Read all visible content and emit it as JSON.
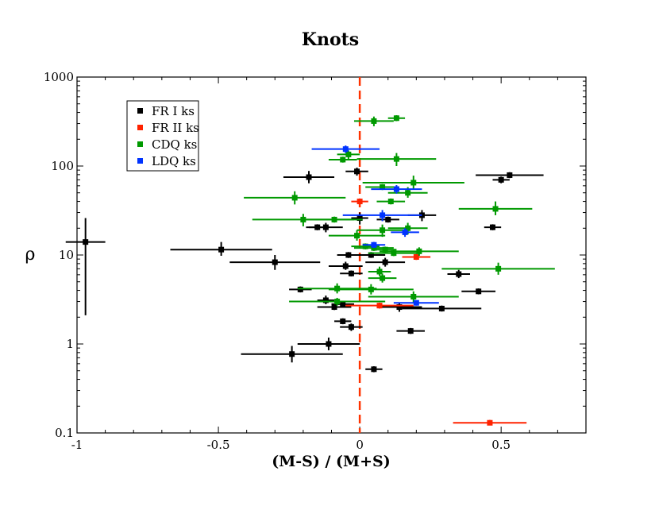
{
  "chart_data": {
    "type": "scatter",
    "title": "Knots",
    "xlabel": "(M-S) / (M+S)",
    "ylabel": "ρ",
    "xlim": [
      -1,
      0.8
    ],
    "ylim": [
      0.1,
      1000
    ],
    "yscale": "log",
    "xticks": [
      {
        "value": -1,
        "label": "-1"
      },
      {
        "value": -0.5,
        "label": "-0.5"
      },
      {
        "value": 0,
        "label": "0"
      },
      {
        "value": 0.5,
        "label": "0.5"
      }
    ],
    "yticks": [
      {
        "value": 0.1,
        "label": "0.1"
      },
      {
        "value": 1,
        "label": "1"
      },
      {
        "value": 10,
        "label": "10"
      },
      {
        "value": 100,
        "label": "100"
      },
      {
        "value": 1000,
        "label": "1000"
      }
    ],
    "reference_line": {
      "x": 0,
      "color": "#ff3300",
      "style": "dashed"
    },
    "legend_position": "top-left",
    "series": [
      {
        "name": "FR I ks",
        "color": "#000000",
        "points": [
          {
            "x": -0.97,
            "y": 14,
            "xerr": 0.07,
            "ylo": 2.1,
            "yhi": 26
          },
          {
            "x": -0.49,
            "y": 11.5,
            "xerr": 0.18,
            "ylo": 9.8,
            "yhi": 14
          },
          {
            "x": -0.3,
            "y": 8.3,
            "xerr": 0.16,
            "ylo": 6.8,
            "yhi": 10
          },
          {
            "x": -0.24,
            "y": 0.77,
            "xerr": 0.18,
            "ylo": 0.62,
            "yhi": 0.95
          },
          {
            "x": -0.21,
            "y": 4.1,
            "xerr": 0.04
          },
          {
            "x": -0.18,
            "y": 75,
            "xerr": 0.09,
            "ylo": 64,
            "yhi": 88
          },
          {
            "x": -0.15,
            "y": 20.5,
            "xerr": 0.04
          },
          {
            "x": -0.12,
            "y": 20.5,
            "xerr": 0.06,
            "ylo": 18,
            "yhi": 23
          },
          {
            "x": -0.12,
            "y": 3.1,
            "xerr": 0.03,
            "ylo": 2.8,
            "yhi": 3.5
          },
          {
            "x": -0.11,
            "y": 1.0,
            "xerr": 0.11,
            "ylo": 0.85,
            "yhi": 1.18
          },
          {
            "x": -0.09,
            "y": 2.6,
            "xerr": 0.06
          },
          {
            "x": -0.06,
            "y": 2.8,
            "xerr": 0.04
          },
          {
            "x": -0.06,
            "y": 1.8,
            "xerr": 0.03
          },
          {
            "x": -0.05,
            "y": 7.5,
            "xerr": 0.06,
            "ylo": 6.8,
            "yhi": 8.4
          },
          {
            "x": -0.04,
            "y": 10.0,
            "xerr": 0.04
          },
          {
            "x": -0.03,
            "y": 6.2,
            "xerr": 0.04
          },
          {
            "x": -0.03,
            "y": 1.55,
            "xerr": 0.04,
            "ylo": 1.4,
            "yhi": 1.7
          },
          {
            "x": -0.01,
            "y": 87,
            "xerr": 0.04,
            "ylo": 78,
            "yhi": 96
          },
          {
            "x": 0.0,
            "y": 26,
            "xerr": 0.03,
            "ylo": 22,
            "yhi": 30
          },
          {
            "x": 0.04,
            "y": 10.0,
            "xerr": 0.05
          },
          {
            "x": 0.05,
            "y": 0.52,
            "xerr": 0.03
          },
          {
            "x": 0.09,
            "y": 8.3,
            "xerr": 0.07,
            "ylo": 7.4,
            "yhi": 9.3
          },
          {
            "x": 0.1,
            "y": 25,
            "xerr": 0.04
          },
          {
            "x": 0.14,
            "y": 2.6,
            "xerr": 0.08,
            "ylo": 2.3,
            "yhi": 2.9
          },
          {
            "x": 0.18,
            "y": 1.4,
            "xerr": 0.05
          },
          {
            "x": 0.22,
            "y": 28,
            "xerr": 0.05,
            "ylo": 24,
            "yhi": 32
          },
          {
            "x": 0.29,
            "y": 2.5,
            "xerr": 0.14
          },
          {
            "x": 0.35,
            "y": 6.1,
            "xerr": 0.04,
            "ylo": 5.5,
            "yhi": 6.8
          },
          {
            "x": 0.42,
            "y": 3.9,
            "xerr": 0.06
          },
          {
            "x": 0.47,
            "y": 20.5,
            "xerr": 0.03
          },
          {
            "x": 0.5,
            "y": 70,
            "xerr": 0.03,
            "ylo": 64,
            "yhi": 76
          },
          {
            "x": 0.53,
            "y": 79,
            "xerr": 0.12
          }
        ]
      },
      {
        "name": "FR II ks",
        "color": "#ff2200",
        "points": [
          {
            "x": 0.0,
            "y": 40,
            "xerr": 0.03
          },
          {
            "x": 0.07,
            "y": 2.7,
            "xerr": 0.12
          },
          {
            "x": 0.2,
            "y": 9.5,
            "xerr": 0.05
          },
          {
            "x": 0.46,
            "y": 0.13,
            "xerr": 0.13,
            "ylo": 0.122,
            "yhi": 0.14
          }
        ]
      },
      {
        "name": "CDQ ks",
        "color": "#009900",
        "points": [
          {
            "x": 0.05,
            "y": 320,
            "xerr": 0.07,
            "ylo": 280,
            "yhi": 360
          },
          {
            "x": 0.13,
            "y": 345,
            "xerr": 0.03
          },
          {
            "x": -0.04,
            "y": 135,
            "xerr": 0.04,
            "ylo": 118,
            "yhi": 150
          },
          {
            "x": -0.06,
            "y": 118,
            "xerr": 0.05
          },
          {
            "x": 0.13,
            "y": 120,
            "xerr": 0.14,
            "ylo": 100,
            "yhi": 140
          },
          {
            "x": 0.08,
            "y": 58,
            "xerr": 0.06
          },
          {
            "x": 0.19,
            "y": 65,
            "xerr": 0.18,
            "ylo": 55,
            "yhi": 78
          },
          {
            "x": -0.23,
            "y": 44,
            "xerr": 0.18,
            "ylo": 37,
            "yhi": 52
          },
          {
            "x": 0.17,
            "y": 50,
            "xerr": 0.07,
            "ylo": 44,
            "yhi": 58
          },
          {
            "x": 0.11,
            "y": 40,
            "xerr": 0.05
          },
          {
            "x": 0.48,
            "y": 33,
            "xerr": 0.13,
            "ylo": 28,
            "yhi": 40
          },
          {
            "x": -0.2,
            "y": 25,
            "xerr": 0.18,
            "ylo": 21,
            "yhi": 29
          },
          {
            "x": -0.09,
            "y": 25,
            "xerr": 0.1
          },
          {
            "x": 0.08,
            "y": 19,
            "xerr": 0.09,
            "ylo": 16,
            "yhi": 22
          },
          {
            "x": 0.17,
            "y": 20,
            "xerr": 0.07,
            "ylo": 17,
            "yhi": 23
          },
          {
            "x": -0.01,
            "y": 16.5,
            "xerr": 0.1,
            "ylo": 14.5,
            "yhi": 19
          },
          {
            "x": 0.02,
            "y": 12.5,
            "xerr": 0.05
          },
          {
            "x": 0.05,
            "y": 12,
            "xerr": 0.07
          },
          {
            "x": 0.09,
            "y": 11.5,
            "xerr": 0.04
          },
          {
            "x": 0.12,
            "y": 10.5,
            "xerr": 0.09
          },
          {
            "x": 0.21,
            "y": 11,
            "xerr": 0.14,
            "ylo": 9.8,
            "yhi": 12.2
          },
          {
            "x": 0.07,
            "y": 6.5,
            "xerr": 0.04,
            "ylo": 5.8,
            "yhi": 7.4
          },
          {
            "x": 0.08,
            "y": 5.5,
            "xerr": 0.05,
            "ylo": 4.9,
            "yhi": 6.2
          },
          {
            "x": 0.49,
            "y": 7.0,
            "xerr": 0.2,
            "ylo": 6.0,
            "yhi": 8.2
          },
          {
            "x": -0.08,
            "y": 4.2,
            "xerr": 0.14,
            "ylo": 3.7,
            "yhi": 4.8
          },
          {
            "x": 0.04,
            "y": 4.1,
            "xerr": 0.15,
            "ylo": 3.6,
            "yhi": 4.7
          },
          {
            "x": 0.19,
            "y": 3.4,
            "xerr": 0.16,
            "ylo": 2.9,
            "yhi": 3.9
          },
          {
            "x": -0.08,
            "y": 3.0,
            "xerr": 0.17,
            "ylo": 2.7,
            "yhi": 3.3
          }
        ]
      },
      {
        "name": "LDQ ks",
        "color": "#0033ff",
        "points": [
          {
            "x": -0.05,
            "y": 155,
            "xerr": 0.12,
            "ylo": 140,
            "yhi": 170
          },
          {
            "x": 0.13,
            "y": 55,
            "xerr": 0.09,
            "ylo": 49,
            "yhi": 61
          },
          {
            "x": 0.08,
            "y": 28,
            "xerr": 0.14,
            "ylo": 24,
            "yhi": 32
          },
          {
            "x": 0.16,
            "y": 18,
            "xerr": 0.05,
            "ylo": 16,
            "yhi": 20
          },
          {
            "x": 0.05,
            "y": 13,
            "xerr": 0.04
          },
          {
            "x": 0.2,
            "y": 2.9,
            "xerr": 0.08,
            "ylo": 2.7,
            "yhi": 3.1
          }
        ]
      }
    ]
  }
}
